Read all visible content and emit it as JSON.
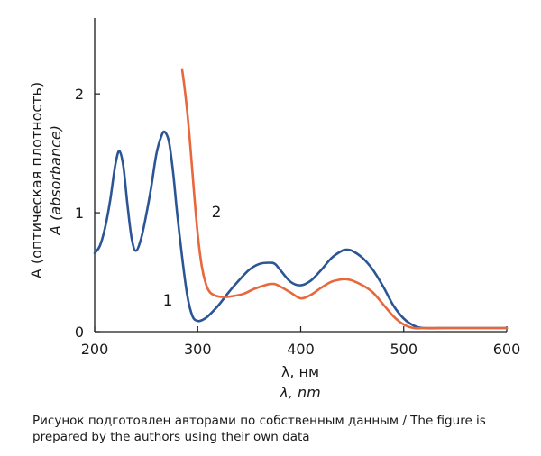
{
  "caption": "Рисунок подготовлен авторами по собственным данным / The figure is prepared by the authors using their own data",
  "chart_data": {
    "type": "line",
    "xlabel": "λ, нм",
    "xlabel_en": "λ, nm",
    "ylabel": "A (оптическая плотность)",
    "ylabel_en": "A (absorbance)",
    "xlim": [
      200,
      600
    ],
    "ylim": [
      0,
      2.6
    ],
    "x_ticks": [
      200,
      300,
      400,
      500,
      600
    ],
    "y_ticks": [
      0,
      1,
      2
    ],
    "x_tick_labels": [
      "200",
      "300",
      "400",
      "500",
      "600"
    ],
    "y_tick_labels": [
      "0",
      "1",
      "2"
    ],
    "grid": false,
    "colors": {
      "series_1": "#2c5596",
      "series_2": "#e8673d",
      "axis": "#1a1a1a",
      "english_label": "#2c5596"
    },
    "series": [
      {
        "label": "1",
        "x": [
          200,
          205,
          210,
          215,
          220,
          224,
          228,
          232,
          236,
          240,
          245,
          250,
          255,
          260,
          265,
          268,
          272,
          276,
          280,
          285,
          290,
          295,
          300,
          305,
          310,
          320,
          330,
          340,
          350,
          360,
          370,
          375,
          380,
          390,
          400,
          410,
          420,
          430,
          440,
          445,
          450,
          460,
          470,
          480,
          490,
          500,
          510,
          520,
          540,
          560,
          580,
          600
        ],
        "y": [
          0.66,
          0.72,
          0.87,
          1.1,
          1.4,
          1.52,
          1.38,
          1.05,
          0.78,
          0.68,
          0.78,
          0.98,
          1.22,
          1.5,
          1.65,
          1.68,
          1.6,
          1.35,
          1.0,
          0.62,
          0.3,
          0.13,
          0.09,
          0.1,
          0.13,
          0.22,
          0.33,
          0.43,
          0.52,
          0.57,
          0.58,
          0.57,
          0.52,
          0.42,
          0.39,
          0.43,
          0.52,
          0.62,
          0.68,
          0.69,
          0.68,
          0.62,
          0.52,
          0.38,
          0.22,
          0.11,
          0.05,
          0.03,
          0.03,
          0.03,
          0.03,
          0.03
        ]
      },
      {
        "label": "2",
        "x": [
          285,
          288,
          292,
          296,
          300,
          304,
          308,
          312,
          318,
          325,
          335,
          345,
          355,
          365,
          370,
          375,
          380,
          390,
          400,
          410,
          420,
          430,
          440,
          445,
          450,
          460,
          470,
          480,
          490,
          500,
          510,
          520,
          540,
          560,
          580,
          600
        ],
        "y": [
          2.2,
          2.0,
          1.65,
          1.22,
          0.82,
          0.55,
          0.4,
          0.33,
          0.3,
          0.29,
          0.3,
          0.32,
          0.36,
          0.39,
          0.4,
          0.4,
          0.38,
          0.33,
          0.28,
          0.31,
          0.37,
          0.42,
          0.44,
          0.44,
          0.43,
          0.39,
          0.33,
          0.23,
          0.13,
          0.06,
          0.03,
          0.03,
          0.03,
          0.03,
          0.03,
          0.03
        ]
      }
    ]
  }
}
